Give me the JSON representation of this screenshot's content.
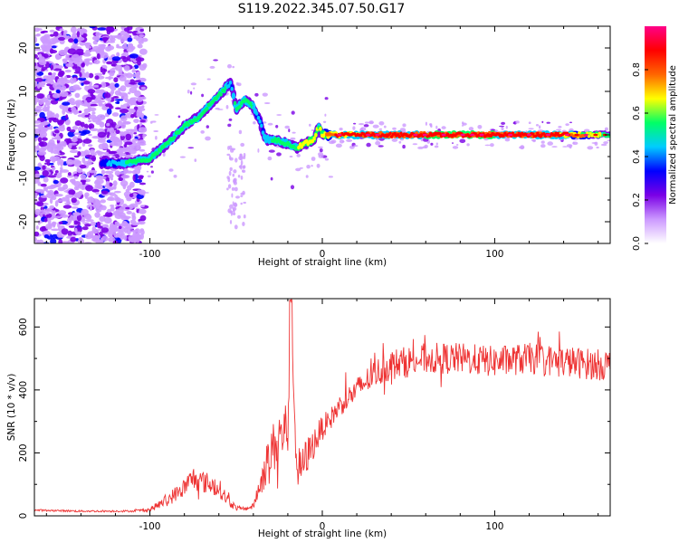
{
  "figure_title": "S119.2022.345.07.50.G17",
  "chart_data": [
    {
      "type": "heatmap",
      "title": "",
      "xlabel": "Height of straight line (km)",
      "ylabel": "Frequency (Hz)",
      "xlim": [
        -167,
        167
      ],
      "ylim": [
        -25,
        25
      ],
      "xticks": [
        -100,
        0,
        100
      ],
      "yticks": [
        -20,
        -10,
        0,
        10,
        20
      ],
      "grid": false,
      "colormap": "rainbow",
      "colorbar": {
        "label": "Normalized spectral amplitude",
        "range": [
          0,
          1
        ],
        "ticks": [
          0.0,
          0.2,
          0.4,
          0.6,
          0.8
        ],
        "colors": [
          "#ffffff",
          "#cc99ff",
          "#7a00e6",
          "#0000ff",
          "#00ccff",
          "#00ff66",
          "#ffff00",
          "#ff6600",
          "#ff0000",
          "#ff0088"
        ]
      },
      "ridge": {
        "x": [
          -125,
          -115,
          -108,
          -100,
          -90,
          -80,
          -72,
          -65,
          -58,
          -53,
          -50,
          -45,
          -40,
          -36,
          -33,
          -30,
          -25,
          -20,
          -15,
          -10,
          -5,
          -2,
          0,
          5,
          20,
          60,
          100,
          140,
          167
        ],
        "y": [
          -6.5,
          -6.5,
          -6,
          -5.5,
          -2,
          2,
          4,
          7,
          10,
          12,
          6,
          8,
          6.5,
          3,
          -1,
          -1,
          -1.5,
          -2,
          -3,
          -2,
          -1,
          2,
          0,
          0,
          0,
          0,
          0,
          0,
          0
        ],
        "amplitude": [
          0.35,
          0.45,
          0.5,
          0.55,
          0.55,
          0.5,
          0.5,
          0.55,
          0.5,
          0.4,
          0.5,
          0.5,
          0.45,
          0.4,
          0.45,
          0.45,
          0.5,
          0.5,
          0.55,
          0.6,
          0.6,
          0.55,
          0.6,
          0.75,
          0.8,
          0.85,
          0.85,
          0.8,
          0.5
        ]
      },
      "noise_region": {
        "x": [
          -167,
          -103
        ],
        "y": [
          -25,
          25
        ]
      }
    },
    {
      "type": "line",
      "title": "",
      "xlabel": "Height of straight line (km)",
      "ylabel": "SNR (10 * v/v)",
      "xlim": [
        -167,
        167
      ],
      "ylim": [
        0,
        690
      ],
      "xticks": [
        -100,
        0,
        100
      ],
      "yticks": [
        0,
        200,
        400,
        600
      ],
      "grid": false,
      "series": [
        {
          "color": "#ee3333",
          "x": [
            -167,
            -140,
            -110,
            -100,
            -90,
            -80,
            -75,
            -70,
            -65,
            -60,
            -55,
            -50,
            -45,
            -40,
            -35,
            -30,
            -25,
            -20,
            -18,
            -15,
            -12,
            -10,
            -5,
            0,
            5,
            10,
            20,
            30,
            40,
            60,
            80,
            100,
            120,
            140,
            160,
            167
          ],
          "y": [
            18,
            15,
            15,
            20,
            50,
            90,
            120,
            110,
            100,
            90,
            50,
            25,
            22,
            30,
            120,
            200,
            250,
            280,
            690,
            150,
            150,
            180,
            230,
            280,
            310,
            350,
            400,
            450,
            480,
            500,
            500,
            490,
            500,
            490,
            480,
            480
          ],
          "noise": [
            3,
            3,
            3,
            6,
            20,
            30,
            40,
            35,
            35,
            30,
            20,
            8,
            6,
            10,
            50,
            80,
            90,
            100,
            50,
            80,
            60,
            60,
            50,
            40,
            35,
            35,
            40,
            45,
            50,
            50,
            50,
            50,
            50,
            50,
            50,
            50
          ]
        }
      ]
    }
  ]
}
